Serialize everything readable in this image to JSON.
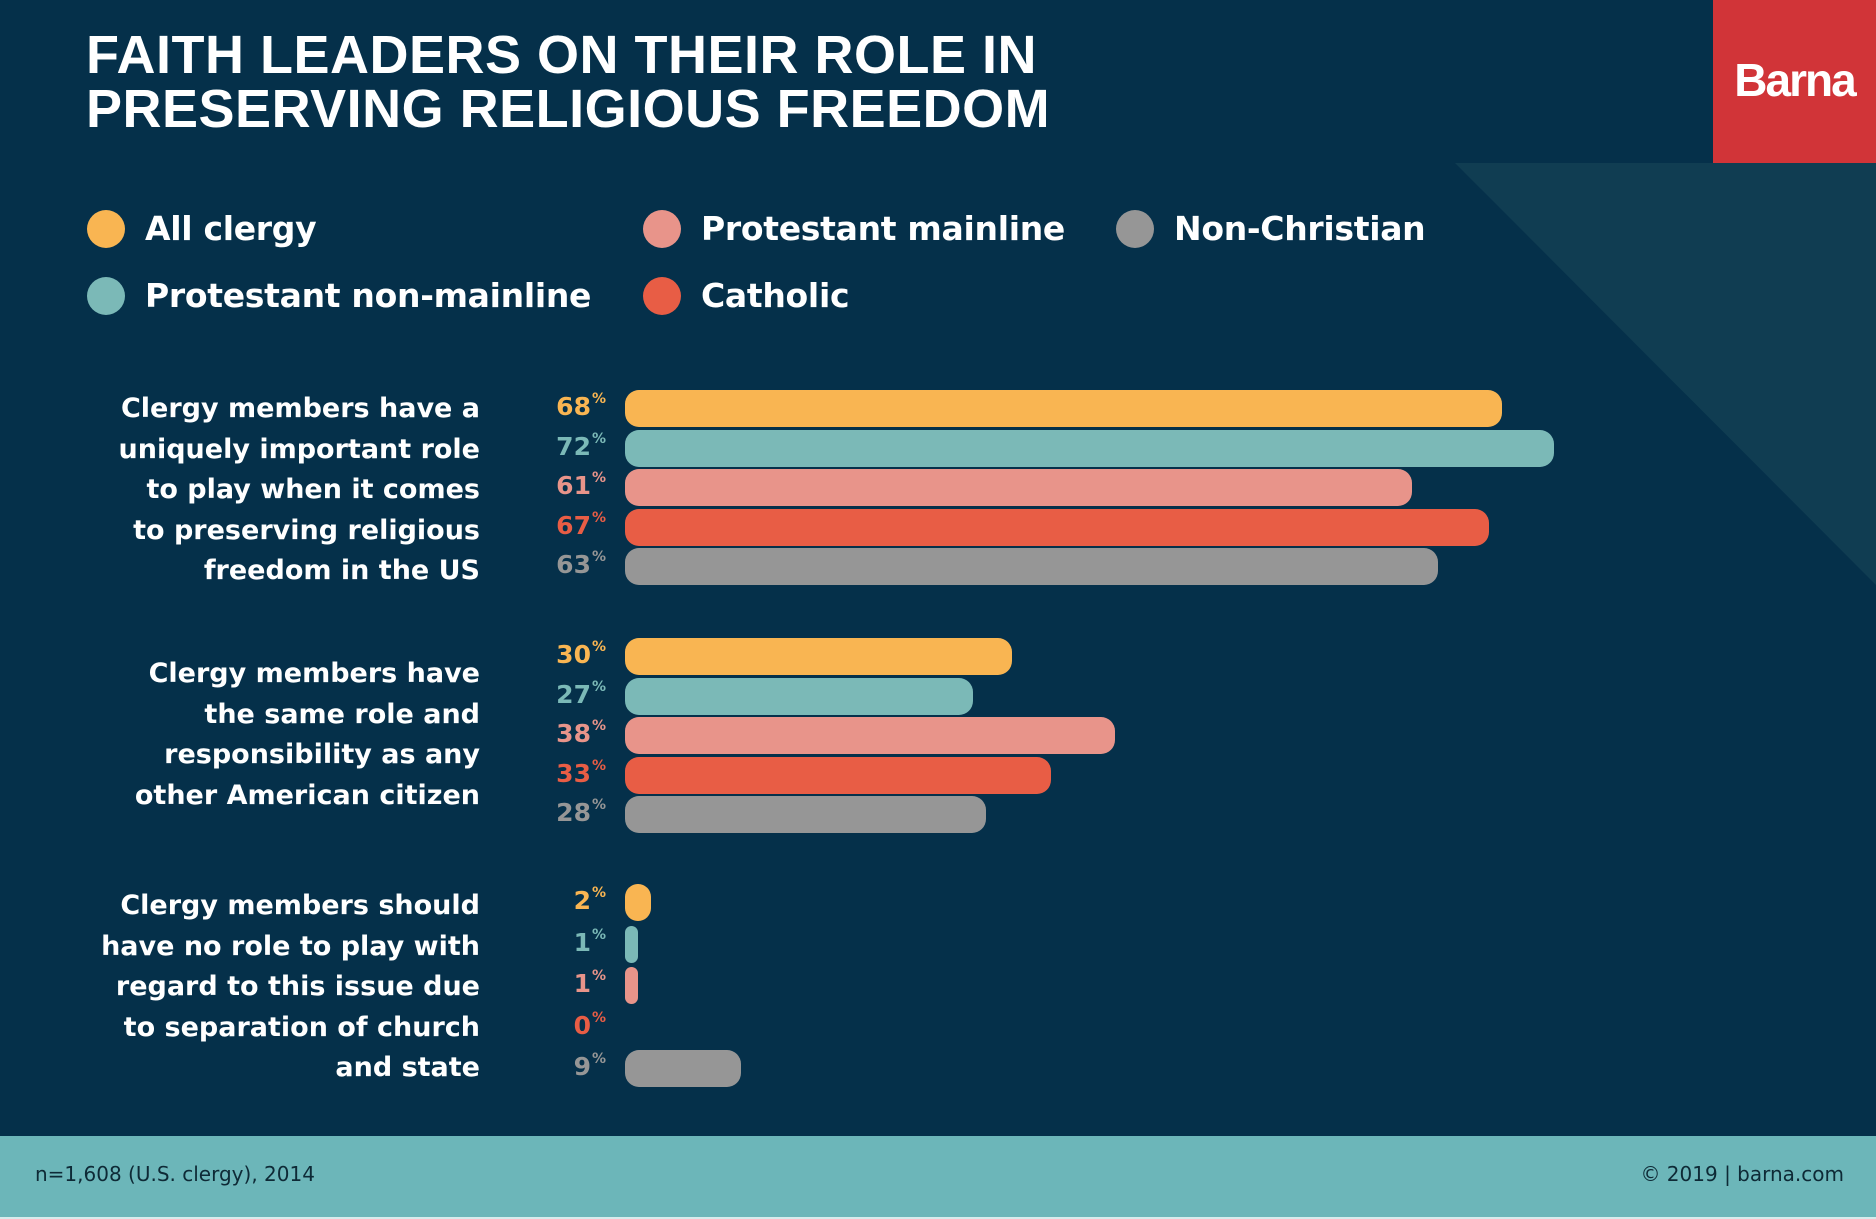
{
  "title": {
    "line1": "FAITH LEADERS ON THEIR ROLE IN",
    "line2": "PRESERVING RELIGIOUS FREEDOM"
  },
  "logo": {
    "text": "Barna",
    "color": "#d13438"
  },
  "colors": {
    "background": "#05304a",
    "diagonal": "#103d52",
    "footer": "#6cb6b9"
  },
  "legend": [
    {
      "label": "All clergy",
      "color": "#f9b552"
    },
    {
      "label": "Protestant non-mainline",
      "color": "#7bb9b7"
    },
    {
      "label": "Protestant mainline",
      "color": "#e8948a"
    },
    {
      "label": "Catholic",
      "color": "#e85d45"
    },
    {
      "label": "Non-Christian",
      "color": "#969696"
    }
  ],
  "chart_data": {
    "type": "bar",
    "orientation": "horizontal",
    "title": "FAITH LEADERS ON THEIR ROLE IN PRESERVING RELIGIOUS FREEDOM",
    "categories": [
      "Clergy members have a uniquely important role to play when it comes to preserving religious freedom in the US",
      "Clergy members have the same role and responsibility as any other American citizen",
      "Clergy members should have no role to play with regard to this issue due to separation of church and state"
    ],
    "category_lines": [
      [
        "Clergy members have a",
        "uniquely important role",
        "to play when it comes",
        "to preserving religious",
        "freedom in the US"
      ],
      [
        "Clergy members have",
        "the same role and",
        "responsibility as any",
        "other American citizen"
      ],
      [
        "Clergy members should",
        "have no role to play with",
        "regard to this issue due",
        "to separation of church",
        "and state"
      ]
    ],
    "series": [
      {
        "name": "All clergy",
        "color": "#f9b552",
        "values": [
          68,
          30,
          2
        ]
      },
      {
        "name": "Protestant non-mainline",
        "color": "#7bb9b7",
        "values": [
          72,
          27,
          1
        ]
      },
      {
        "name": "Protestant mainline",
        "color": "#e8948a",
        "values": [
          61,
          38,
          1
        ]
      },
      {
        "name": "Catholic",
        "color": "#e85d45",
        "values": [
          67,
          33,
          0
        ]
      },
      {
        "name": "Non-Christian",
        "color": "#969696",
        "values": [
          63,
          28,
          9
        ]
      }
    ],
    "value_suffix": "%",
    "xlim": [
      0,
      100
    ],
    "xlabel": "",
    "ylabel": "",
    "grid": false,
    "legend_position": "top"
  },
  "footer": {
    "left": "n=1,608 (U.S. clergy), 2014",
    "right": "© 2019 | barna.com"
  }
}
